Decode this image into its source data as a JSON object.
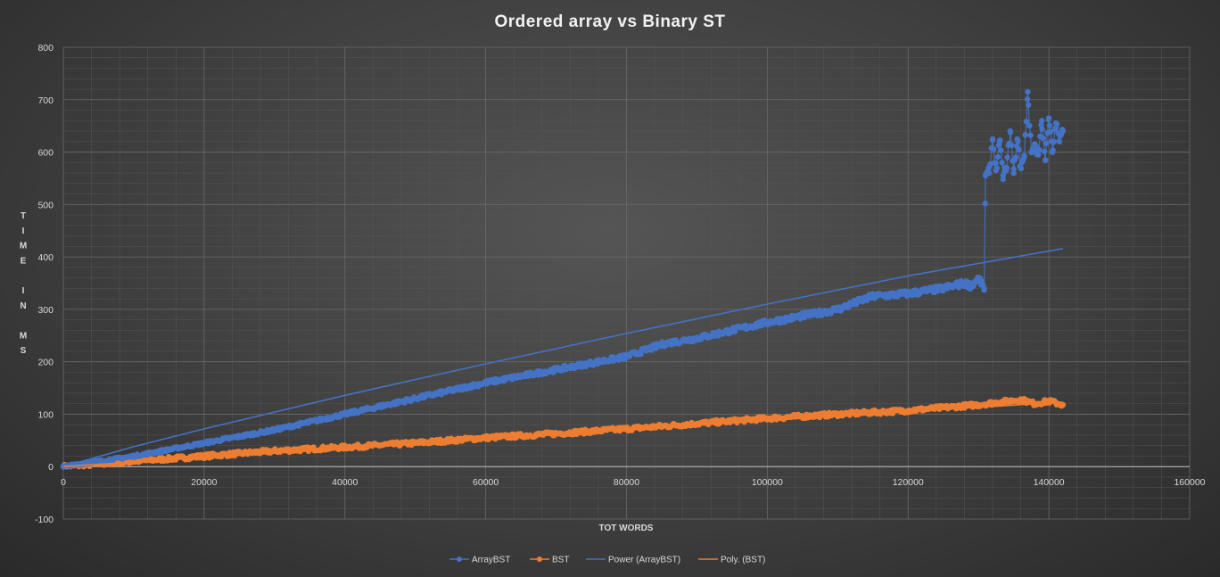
{
  "chart_data": {
    "type": "scatter",
    "title": "Ordered  array  vs  Binary  ST",
    "xlabel": "TOT WORDS",
    "ylabel_letters": [
      "T",
      "I",
      "M",
      "E",
      "",
      "I",
      "N",
      "",
      "M",
      "S"
    ],
    "xlim": [
      0,
      160000
    ],
    "ylim": [
      -100,
      800
    ],
    "x_ticks": [
      "0",
      "20000",
      "40000",
      "60000",
      "80000",
      "100000",
      "120000",
      "140000",
      "160000"
    ],
    "y_ticks": [
      "-100",
      "0",
      "100",
      "200",
      "300",
      "400",
      "500",
      "600",
      "700",
      "800"
    ],
    "grid": true,
    "legend_position": "bottom",
    "series": [
      {
        "name": "ArrayBST",
        "color": "#4472c4",
        "style": "line-markers",
        "x": [
          0,
          10000,
          20000,
          30000,
          40000,
          50000,
          60000,
          70000,
          80000,
          85500,
          90000,
          100000,
          110000,
          115000,
          120000,
          125000,
          128000,
          129000,
          130000,
          130800,
          131000,
          131500,
          132000,
          132500,
          133000,
          133500,
          134000,
          134500,
          135000,
          135500,
          136000,
          136500,
          137000,
          137500,
          138000,
          138500,
          139000,
          139500,
          140000,
          140500,
          141000,
          141500,
          142000
        ],
        "y": [
          0,
          20,
          45,
          70,
          100,
          130,
          160,
          185,
          210,
          235,
          245,
          275,
          300,
          325,
          330,
          340,
          350,
          345,
          360,
          340,
          555,
          560,
          625,
          565,
          620,
          555,
          570,
          640,
          560,
          625,
          570,
          590,
          715,
          600,
          615,
          595,
          660,
          585,
          665,
          600,
          655,
          620,
          640
        ]
      },
      {
        "name": "BST",
        "color": "#ed7d31",
        "style": "line-markers",
        "x": [
          0,
          10000,
          20000,
          30000,
          40000,
          50000,
          60000,
          70000,
          80000,
          90000,
          100000,
          110000,
          120000,
          130000,
          136000,
          138000,
          140000,
          142000
        ],
        "y": [
          0,
          10,
          20,
          30,
          37,
          45,
          55,
          63,
          72,
          82,
          92,
          100,
          107,
          118,
          128,
          120,
          125,
          118
        ]
      },
      {
        "name": "Power (ArrayBST)",
        "color": "#4472c4",
        "style": "trendline",
        "x": [
          0,
          10000,
          20000,
          40000,
          60000,
          80000,
          100000,
          120000,
          142000
        ],
        "y": [
          0,
          38,
          72,
          136,
          196,
          254,
          310,
          364,
          416
        ]
      },
      {
        "name": "Poly. (BST)",
        "color": "#ed7d31",
        "style": "trendline",
        "x": [
          0,
          20000,
          40000,
          60000,
          80000,
          100000,
          120000,
          142000
        ],
        "y": [
          0,
          17,
          34,
          52,
          70,
          88,
          105,
          123
        ]
      }
    ]
  }
}
